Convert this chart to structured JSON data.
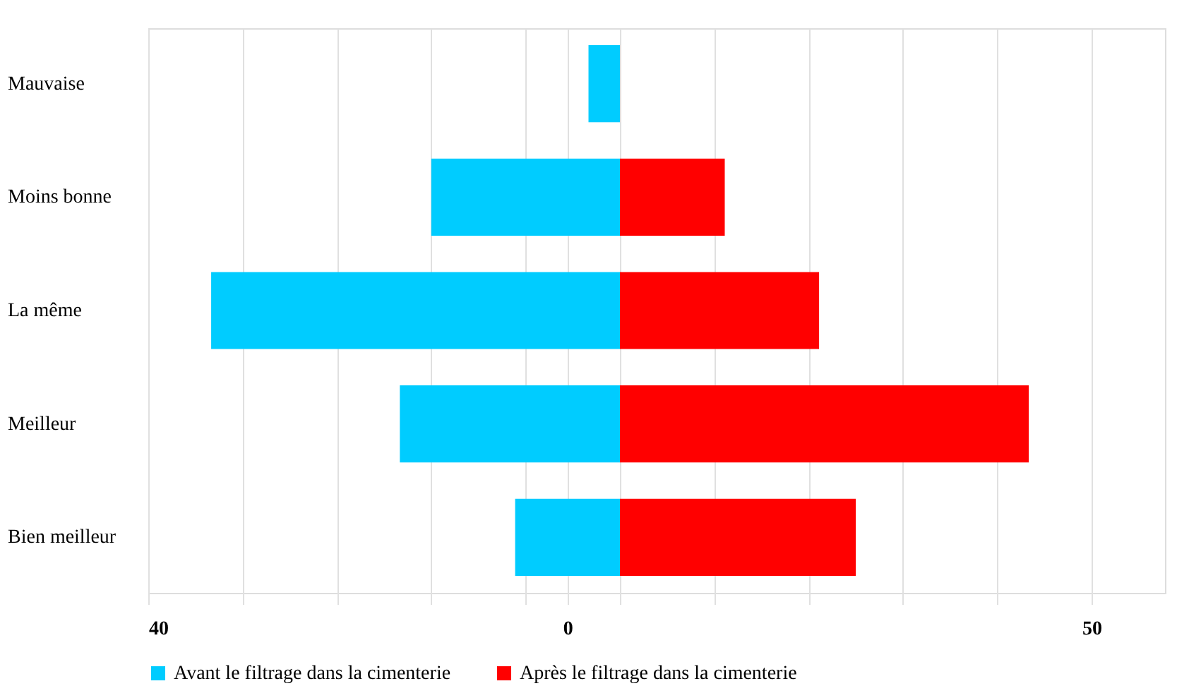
{
  "chart_data": {
    "type": "bar",
    "orientation": "horizontal",
    "categories": [
      "Mauvaise",
      "Moins bonne",
      "La même",
      "Meilleur",
      "Bien meilleur"
    ],
    "series": [
      {
        "name": "Avant le filtrage dans la cimenterie",
        "color": "#00ccff",
        "base": [
          5,
          5,
          5,
          5,
          5
        ],
        "values": [
          -3,
          -18,
          -39,
          -21,
          -10
        ]
      },
      {
        "name": "Après le filtrage dans la cimenterie",
        "color": "#ff0000",
        "base": [
          null,
          5,
          5,
          5,
          5
        ],
        "values": [
          null,
          10,
          19,
          39,
          22.5
        ]
      }
    ],
    "xlim": [
      -40,
      57
    ],
    "xticks": [
      {
        "value": -40,
        "label": "40"
      },
      {
        "value": -31,
        "label": null
      },
      {
        "value": -22,
        "label": null
      },
      {
        "value": -13,
        "label": null
      },
      {
        "value": -4,
        "label": null
      },
      0,
      {
        "value": 5,
        "label": null
      },
      {
        "value": 14,
        "label": null
      },
      {
        "value": 23,
        "label": null
      },
      {
        "value": 32,
        "label": null
      },
      {
        "value": 41,
        "label": null
      },
      50
    ],
    "grid": "x",
    "legend": "bottom"
  }
}
